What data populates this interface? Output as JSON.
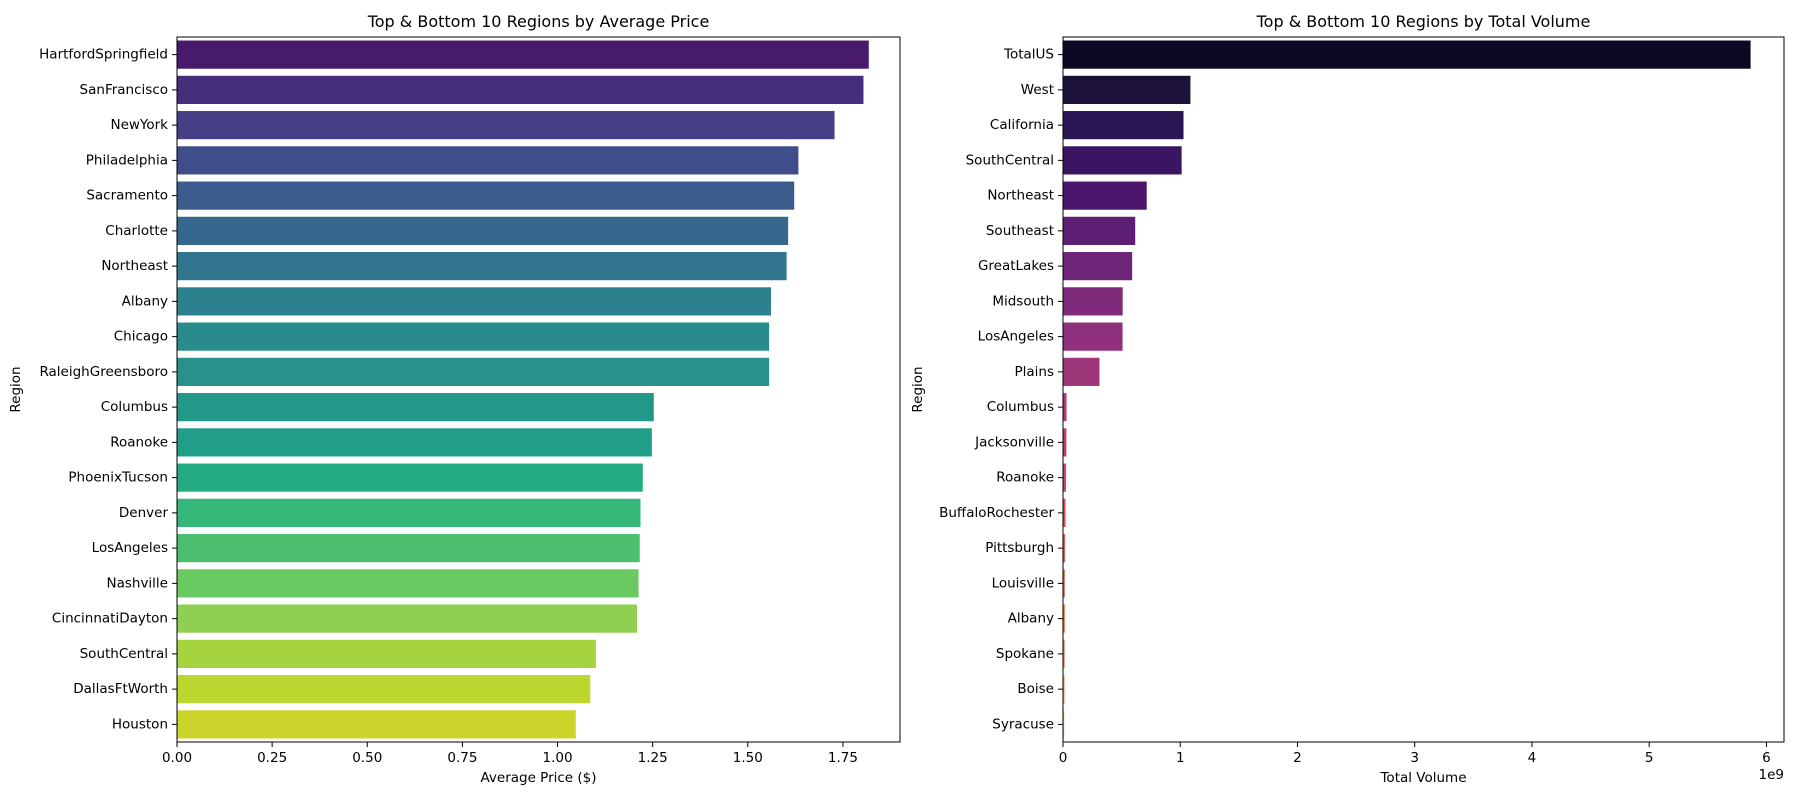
{
  "chart_data": [
    {
      "type": "bar",
      "orientation": "horizontal",
      "title": "Top & Bottom 10 Regions by Average Price",
      "xlabel": "Average Price ($)",
      "ylabel": "Region",
      "xlim": [
        0,
        1.9
      ],
      "xticks": [
        "0.00",
        "0.25",
        "0.50",
        "0.75",
        "1.00",
        "1.25",
        "1.50",
        "1.75"
      ],
      "xtick_values": [
        0,
        0.25,
        0.5,
        0.75,
        1.0,
        1.25,
        1.5,
        1.75
      ],
      "categories": [
        "HartfordSpringfield",
        "SanFrancisco",
        "NewYork",
        "Philadelphia",
        "Sacramento",
        "Charlotte",
        "Northeast",
        "Albany",
        "Chicago",
        "RaleighGreensboro",
        "Columbus",
        "Roanoke",
        "PhoenixTucson",
        "Denver",
        "LosAngeles",
        "Nashville",
        "CincinnatiDayton",
        "SouthCentral",
        "DallasFtWorth",
        "Houston"
      ],
      "values": [
        1.818,
        1.804,
        1.728,
        1.633,
        1.622,
        1.606,
        1.602,
        1.561,
        1.556,
        1.556,
        1.253,
        1.248,
        1.224,
        1.218,
        1.216,
        1.213,
        1.209,
        1.101,
        1.086,
        1.048
      ],
      "colors": [
        "#481a6c",
        "#472e7c",
        "#453f86",
        "#404d8b",
        "#3b5b8c",
        "#36688d",
        "#31748e",
        "#2d808e",
        "#298c8c",
        "#27918b",
        "#23988a",
        "#209e87",
        "#25ab82",
        "#35b779",
        "#4bbf6e",
        "#6bc962",
        "#8fcf52",
        "#a5d43e",
        "#bcd52f",
        "#cbd42a"
      ],
      "grid": false
    },
    {
      "type": "bar",
      "orientation": "horizontal",
      "title": "Top & Bottom 10 Regions by Total Volume",
      "xlabel": "Total Volume",
      "ylabel": "Region",
      "offset_text": "1e9",
      "xlim": [
        0,
        6.15
      ],
      "xticks": [
        "0",
        "1",
        "2",
        "3",
        "4",
        "5",
        "6"
      ],
      "xtick_values": [
        0,
        1,
        2,
        3,
        4,
        5,
        6
      ],
      "categories": [
        "TotalUS",
        "West",
        "California",
        "SouthCentral",
        "Northeast",
        "Southeast",
        "GreatLakes",
        "Midsouth",
        "LosAngeles",
        "Plains",
        "Columbus",
        "Jacksonville",
        "Roanoke",
        "BuffaloRochester",
        "Pittsburgh",
        "Louisville",
        "Albany",
        "Spokane",
        "Boise",
        "Syracuse"
      ],
      "values": [
        5.865,
        1.087,
        1.028,
        1.012,
        0.714,
        0.616,
        0.59,
        0.509,
        0.508,
        0.311,
        0.03,
        0.029,
        0.026,
        0.022,
        0.018,
        0.016,
        0.016,
        0.015,
        0.014,
        0.011
      ],
      "colors": [
        "#0b0924",
        "#1c1238",
        "#2b1654",
        "#391562",
        "#4b176c",
        "#5d1f73",
        "#6e2477",
        "#7f2a7a",
        "#8e307b",
        "#9e3779",
        "#ae3b76",
        "#be3f70",
        "#cd4567",
        "#da505e",
        "#e45e55",
        "#ec6b4e",
        "#f17848",
        "#f58e54",
        "#f8a56b",
        "#fbbd88"
      ],
      "grid": false
    }
  ]
}
